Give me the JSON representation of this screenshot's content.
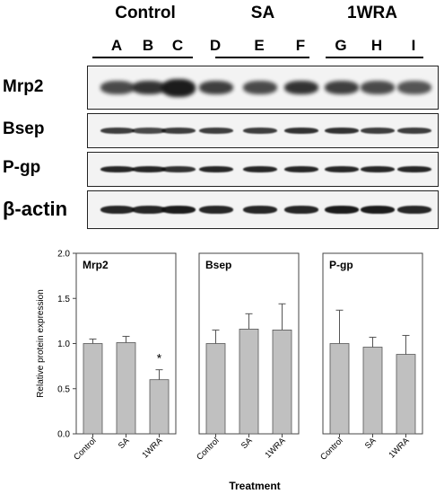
{
  "blot": {
    "groups": [
      {
        "label": "Control",
        "lanes": [
          "A",
          "B",
          "C"
        ]
      },
      {
        "label": "SA",
        "lanes": [
          "D",
          "E",
          "F"
        ]
      },
      {
        "label": "1WRA",
        "lanes": [
          "G",
          "H",
          "I"
        ]
      }
    ],
    "rows": [
      "Mrp2",
      "Bsep",
      "P-gp",
      "β-actin"
    ]
  },
  "chart_data": [
    {
      "type": "bar",
      "title": "Mrp2",
      "categories": [
        "Control",
        "SA",
        "1WRA"
      ],
      "values": [
        1.0,
        1.01,
        0.6
      ],
      "errors": [
        0.05,
        0.07,
        0.11
      ],
      "annotations": [
        "",
        "",
        "*"
      ],
      "ylabel": "Relative protein expression",
      "ylim": [
        0,
        2.0
      ],
      "yticks": [
        "0.0",
        "0.5",
        "1.0",
        "1.5",
        "2.0"
      ],
      "bar_color": "#c0c0c0"
    },
    {
      "type": "bar",
      "title": "Bsep",
      "categories": [
        "Control",
        "SA",
        "1WRA"
      ],
      "values": [
        1.0,
        1.16,
        1.15
      ],
      "errors": [
        0.15,
        0.17,
        0.29
      ],
      "annotations": [
        "",
        "",
        ""
      ],
      "ylim": [
        0,
        2.0
      ],
      "bar_color": "#c0c0c0"
    },
    {
      "type": "bar",
      "title": "P-gp",
      "categories": [
        "Control",
        "SA",
        "1WRA"
      ],
      "values": [
        1.0,
        0.96,
        0.88
      ],
      "errors": [
        0.37,
        0.11,
        0.21
      ],
      "annotations": [
        "",
        "",
        ""
      ],
      "ylim": [
        0,
        2.0
      ],
      "bar_color": "#c0c0c0"
    }
  ],
  "xlabel": "Treatment"
}
